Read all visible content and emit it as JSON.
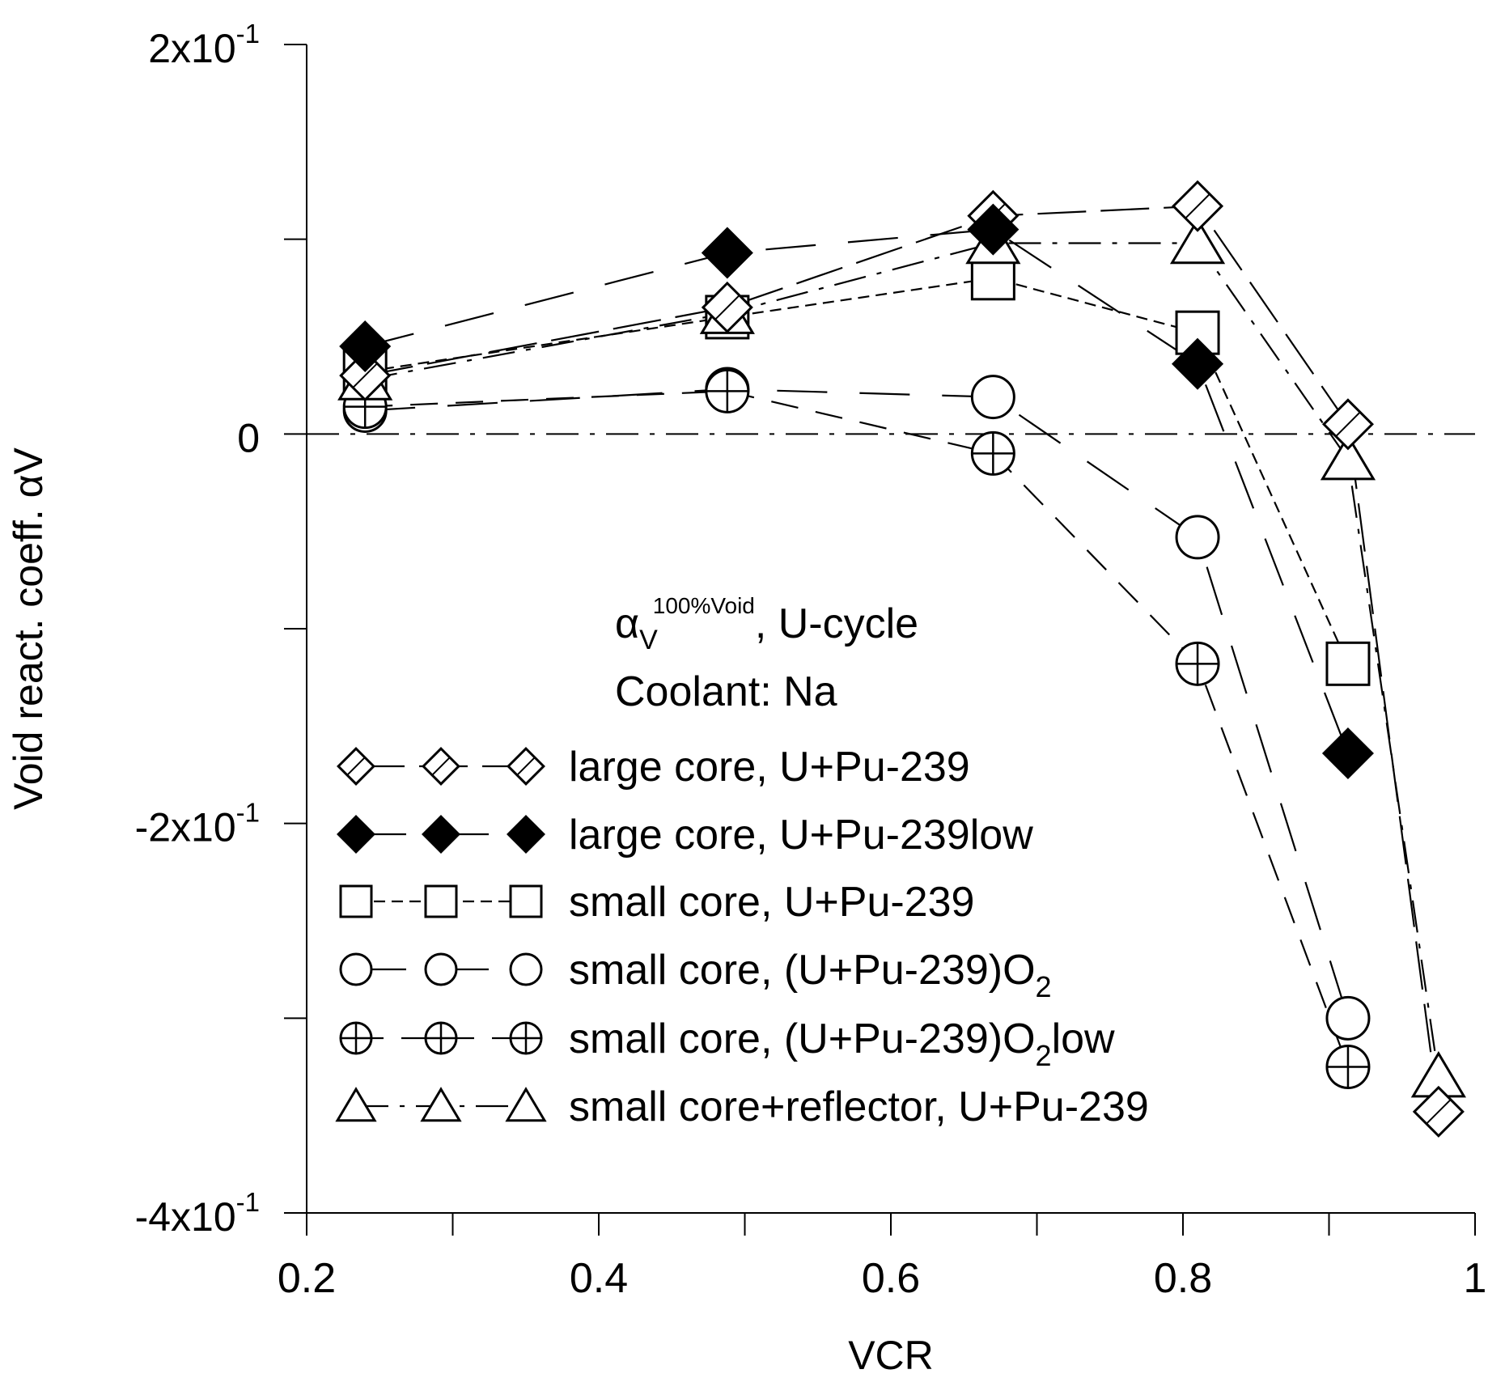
{
  "chart_data": {
    "type": "scatter",
    "title": "",
    "xlabel": "VCR",
    "ylabel": "Void react. coeff. αV",
    "xlim": [
      0.2,
      1.0
    ],
    "ylim": [
      -0.4,
      0.2
    ],
    "x_ticks": [
      "0.2",
      "0.4",
      "0.6",
      "0.8",
      "1"
    ],
    "y_ticks": [
      {
        "base": "2x10",
        "exp": "-1",
        "value": 0.2
      },
      {
        "base": "0",
        "exp": "",
        "value": 0.0
      },
      {
        "base": "-2x10",
        "exp": "-1",
        "value": -0.2
      },
      {
        "base": "-4x10",
        "exp": "-1",
        "value": -0.4
      }
    ],
    "zero_line": true,
    "annotation": {
      "alpha": "α",
      "sub": "V",
      "sup": "100%Void",
      "rest": ", U-cycle",
      "line2": "Coolant: Na"
    },
    "legend_position": "lower-center",
    "series": [
      {
        "name": "large  core, U+Pu-239",
        "marker": "diamond-open",
        "dash": "long",
        "x": [
          0.24,
          0.488,
          0.67,
          0.81,
          0.913,
          0.975
        ],
        "y": [
          0.03,
          0.065,
          0.112,
          0.117,
          0.005,
          -0.348
        ]
      },
      {
        "name": "large  core, U+Pu-239low",
        "marker": "diamond-filled",
        "dash": "longgap",
        "x": [
          0.24,
          0.488,
          0.67,
          0.81,
          0.913
        ],
        "y": [
          0.045,
          0.093,
          0.105,
          0.036,
          -0.164
        ]
      },
      {
        "name": "small core, U+Pu-239",
        "marker": "square",
        "dash": "short",
        "x": [
          0.24,
          0.488,
          0.67,
          0.81,
          0.913
        ],
        "y": [
          0.032,
          0.06,
          0.08,
          0.052,
          -0.118
        ]
      },
      {
        "name": "small core, (U+Pu-239)O",
        "name_sub": "2",
        "name_tail": "",
        "marker": "circle",
        "dash": "longgap",
        "x": [
          0.24,
          0.488,
          0.67,
          0.81,
          0.913
        ],
        "y": [
          0.012,
          0.023,
          0.019,
          -0.053,
          -0.3
        ]
      },
      {
        "name": "small core, (U+Pu-239)O",
        "name_sub": "2",
        "name_tail": "low",
        "marker": "circle-plus",
        "dash": "dash",
        "x": [
          0.24,
          0.488,
          0.67,
          0.81,
          0.913
        ],
        "y": [
          0.014,
          0.022,
          -0.01,
          -0.118,
          -0.325
        ]
      },
      {
        "name": "small core+reflector, U+Pu-239",
        "marker": "triangle",
        "dash": "dashdot",
        "x": [
          0.24,
          0.488,
          0.67,
          0.81,
          0.913,
          0.975
        ],
        "y": [
          0.028,
          0.062,
          0.098,
          0.098,
          -0.013,
          -0.33
        ]
      }
    ]
  }
}
